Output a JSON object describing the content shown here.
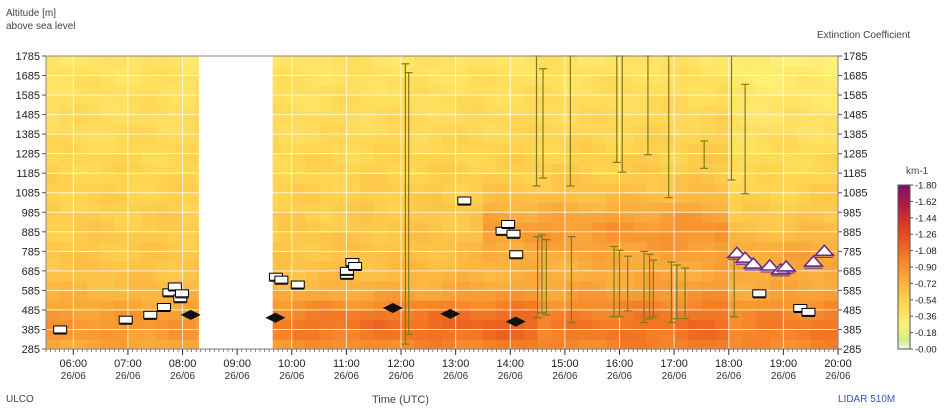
{
  "header": {
    "ylabel_line1": "Altitude [m]",
    "ylabel_line2": "above sea level",
    "right_label": "Extinction Coefficient"
  },
  "footer": {
    "left_label": "ULCO",
    "xlabel": "Time (UTC)",
    "right_label": "LIDAR 510M"
  },
  "colorbar": {
    "unit": "km-1",
    "ticks": [
      "1.80",
      "1.62",
      "1.44",
      "1.26",
      "1.08",
      "0.90",
      "0.72",
      "0.54",
      "0.36",
      "0.18",
      "0.00"
    ]
  },
  "chart_data": {
    "type": "heatmap",
    "x_range_hours": [
      5.5,
      20.0
    ],
    "y_range": [
      285,
      1785
    ],
    "y_ticks": [
      1785,
      1685,
      1585,
      1485,
      1385,
      1285,
      1185,
      1085,
      985,
      885,
      785,
      685,
      585,
      485,
      385,
      285
    ],
    "x_ticks": [
      {
        "time": "06:00",
        "date": "26/06",
        "h": 6
      },
      {
        "time": "07:00",
        "date": "26/06",
        "h": 7
      },
      {
        "time": "08:00",
        "date": "26/06",
        "h": 8
      },
      {
        "time": "09:00",
        "date": "26/06",
        "h": 9
      },
      {
        "time": "10:00",
        "date": "26/06",
        "h": 10
      },
      {
        "time": "11:00",
        "date": "26/06",
        "h": 11
      },
      {
        "time": "12:00",
        "date": "26/06",
        "h": 12
      },
      {
        "time": "13:00",
        "date": "26/06",
        "h": 13
      },
      {
        "time": "14:00",
        "date": "26/06",
        "h": 14
      },
      {
        "time": "15:00",
        "date": "26/06",
        "h": 15
      },
      {
        "time": "16:00",
        "date": "26/06",
        "h": 16
      },
      {
        "time": "17:00",
        "date": "26/06",
        "h": 17
      },
      {
        "time": "18:00",
        "date": "26/06",
        "h": 18
      },
      {
        "time": "19:00",
        "date": "26/06",
        "h": 19
      },
      {
        "time": "20:00",
        "date": "26/06",
        "h": 20
      }
    ],
    "no_data_gap_hours": [
      8.3,
      9.65
    ],
    "grid": true,
    "aerosol_layer_markers": [
      {
        "h": 5.75,
        "alt": 385
      },
      {
        "h": 6.95,
        "alt": 435
      },
      {
        "h": 7.4,
        "alt": 460
      },
      {
        "h": 7.65,
        "alt": 500
      },
      {
        "h": 7.75,
        "alt": 575
      },
      {
        "h": 7.85,
        "alt": 605
      },
      {
        "h": 7.95,
        "alt": 545
      },
      {
        "h": 7.98,
        "alt": 570
      },
      {
        "h": 9.7,
        "alt": 655
      },
      {
        "h": 9.8,
        "alt": 640
      },
      {
        "h": 10.1,
        "alt": 615
      },
      {
        "h": 11.0,
        "alt": 665
      },
      {
        "h": 11.0,
        "alt": 685
      },
      {
        "h": 11.1,
        "alt": 730
      },
      {
        "h": 11.15,
        "alt": 710
      },
      {
        "h": 13.15,
        "alt": 1045
      },
      {
        "h": 13.85,
        "alt": 890
      },
      {
        "h": 13.95,
        "alt": 925
      },
      {
        "h": 14.05,
        "alt": 875
      },
      {
        "h": 14.1,
        "alt": 770
      },
      {
        "h": 18.55,
        "alt": 570
      },
      {
        "h": 19.3,
        "alt": 495
      },
      {
        "h": 19.45,
        "alt": 475
      }
    ],
    "boundary_layer_markers": [
      {
        "h": 8.15,
        "alt": 460
      },
      {
        "h": 9.7,
        "alt": 445
      },
      {
        "h": 11.85,
        "alt": 495
      },
      {
        "h": 12.9,
        "alt": 465
      },
      {
        "h": 14.1,
        "alt": 425
      }
    ],
    "cloud_markers": [
      {
        "h": 18.15,
        "alt": 780
      },
      {
        "h": 18.3,
        "alt": 755
      },
      {
        "h": 18.45,
        "alt": 725
      },
      {
        "h": 18.75,
        "alt": 715
      },
      {
        "h": 18.95,
        "alt": 695
      },
      {
        "h": 19.05,
        "alt": 710
      },
      {
        "h": 19.55,
        "alt": 735
      },
      {
        "h": 19.75,
        "alt": 790
      }
    ],
    "cloud_profiles": [
      {
        "h": 12.08,
        "top": 1745,
        "bottom": 310
      },
      {
        "h": 12.14,
        "top": 1700,
        "bottom": 360
      },
      {
        "h": 14.48,
        "top": 1785,
        "bottom": 1120
      },
      {
        "h": 14.6,
        "top": 1720,
        "bottom": 1160
      },
      {
        "h": 14.5,
        "top": 860,
        "bottom": 445
      },
      {
        "h": 14.58,
        "top": 870,
        "bottom": 470
      },
      {
        "h": 14.66,
        "top": 845,
        "bottom": 460
      },
      {
        "h": 15.1,
        "top": 1785,
        "bottom": 1120
      },
      {
        "h": 15.12,
        "top": 860,
        "bottom": 420
      },
      {
        "h": 15.95,
        "top": 1785,
        "bottom": 1240
      },
      {
        "h": 16.05,
        "top": 1785,
        "bottom": 1190
      },
      {
        "h": 16.52,
        "top": 1785,
        "bottom": 1280
      },
      {
        "h": 16.9,
        "top": 1785,
        "bottom": 1060
      },
      {
        "h": 15.9,
        "top": 810,
        "bottom": 450
      },
      {
        "h": 16.0,
        "top": 790,
        "bottom": 450
      },
      {
        "h": 16.15,
        "top": 760,
        "bottom": 480
      },
      {
        "h": 16.45,
        "top": 785,
        "bottom": 420
      },
      {
        "h": 16.55,
        "top": 770,
        "bottom": 440
      },
      {
        "h": 16.62,
        "top": 740,
        "bottom": 450
      },
      {
        "h": 16.95,
        "top": 730,
        "bottom": 420
      },
      {
        "h": 17.05,
        "top": 715,
        "bottom": 440
      },
      {
        "h": 17.2,
        "top": 700,
        "bottom": 440
      },
      {
        "h": 17.55,
        "top": 1350,
        "bottom": 1210
      },
      {
        "h": 18.05,
        "top": 1785,
        "bottom": 1150
      },
      {
        "h": 18.1,
        "top": 770,
        "bottom": 450
      },
      {
        "h": 18.3,
        "top": 1640,
        "bottom": 1080
      }
    ]
  }
}
